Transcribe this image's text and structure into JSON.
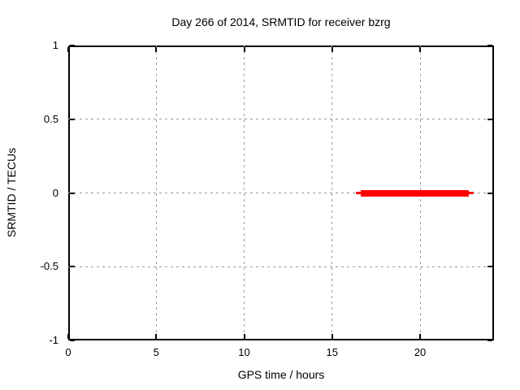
{
  "chart_data": {
    "type": "line",
    "title": "Day 266 of 2014, SRMTID for receiver bzrg",
    "xlabel": "GPS time / hours",
    "ylabel": "SRMTID / TECUs",
    "xlim": [
      0,
      24.2
    ],
    "ylim": [
      -1,
      1
    ],
    "x_ticks": [
      0,
      5,
      10,
      15,
      20
    ],
    "x_tick_labels": [
      "0",
      "5",
      "10",
      "15",
      "20"
    ],
    "y_ticks": [
      1,
      0.5,
      0,
      -0.5,
      -1
    ],
    "y_tick_labels": [
      "1",
      "0.5",
      "0",
      "-0.5",
      "-1"
    ],
    "grid": true,
    "grid_style": "dashed",
    "legend_position": "none",
    "series": [
      {
        "name": "SRMTID",
        "color": "#ff0000",
        "style": "thick flat segment of points at constant value",
        "segment": {
          "x_start": 16.35,
          "x_end": 23.05,
          "y": 0
        },
        "points": [
          {
            "x": 16.35,
            "y": 0
          },
          {
            "x": 23.05,
            "y": 0
          }
        ]
      }
    ],
    "colors": {
      "background": "#ffffff",
      "border": "#000000",
      "grid": "#9a9a9a",
      "text": "#000000",
      "series": "#ff0000"
    }
  }
}
